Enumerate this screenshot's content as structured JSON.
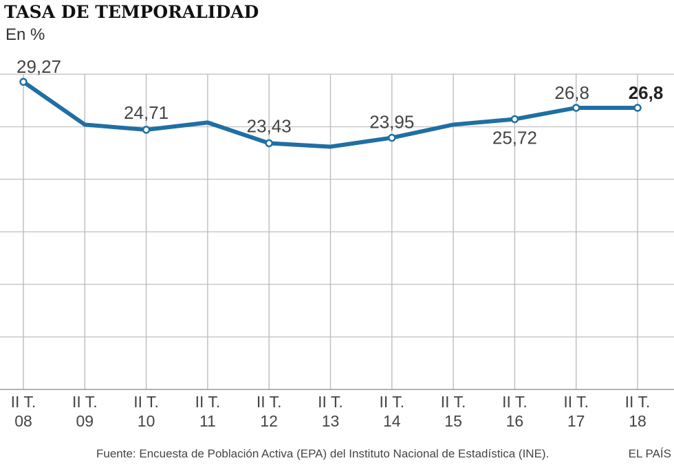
{
  "chart_data": {
    "type": "line",
    "title": "TASA DE TEMPORALIDAD",
    "subtitle": "En %",
    "x_tick_lines": [
      [
        "II T.",
        "08"
      ],
      [
        "II T.",
        "09"
      ],
      [
        "II T.",
        "10"
      ],
      [
        "II T.",
        "11"
      ],
      [
        "II T.",
        "12"
      ],
      [
        "II T.",
        "13"
      ],
      [
        "II T.",
        "14"
      ],
      [
        "II T.",
        "15"
      ],
      [
        "II T.",
        "16"
      ],
      [
        "II T.",
        "17"
      ],
      [
        "II T.",
        "18"
      ]
    ],
    "series": [
      {
        "values": [
          29.27,
          25.2,
          24.71,
          25.4,
          23.43,
          23.1,
          23.95,
          25.2,
          25.72,
          26.8,
          26.8
        ],
        "data_labels": [
          "29,27",
          null,
          "24,71",
          null,
          "23,43",
          null,
          "23,95",
          null,
          "25,72",
          "26,8",
          "26,8"
        ],
        "markers": [
          true,
          false,
          true,
          false,
          true,
          false,
          true,
          false,
          true,
          true,
          true
        ],
        "color": "#1f6fa3"
      }
    ],
    "ylim": [
      0,
      30
    ],
    "grid": "y-horizontal-and-x-vertical",
    "source": "Fuente: Encuesta de Población Activa (EPA) del Instituto Nacional de Estadística (INE).",
    "brand": "EL PAÍS"
  }
}
